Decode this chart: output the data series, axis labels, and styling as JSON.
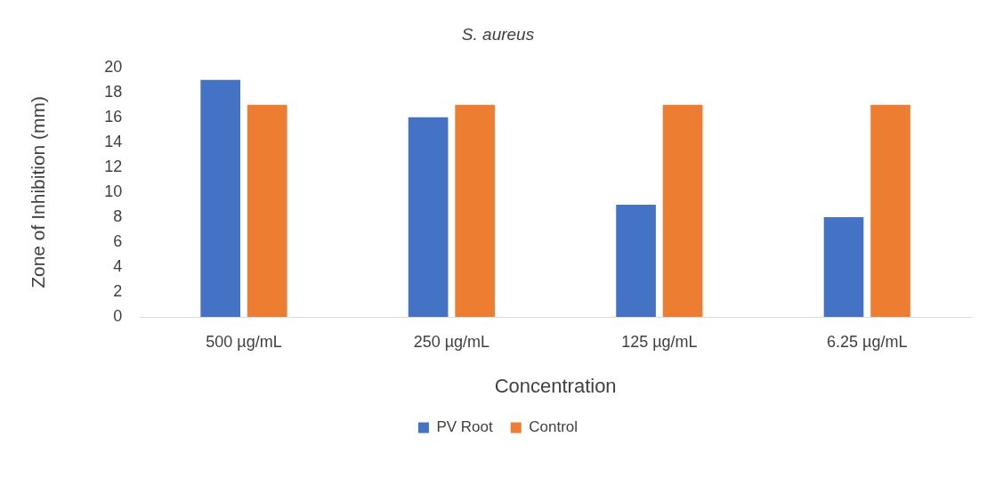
{
  "chart_data": {
    "type": "bar",
    "title": "S. aureus",
    "xlabel": "Concentration",
    "ylabel": "Zone of Inhibition (mm)",
    "categories": [
      "500 µg/mL",
      "250 µg/mL",
      "125 µg/mL",
      "6.25 µg/mL"
    ],
    "series": [
      {
        "name": "PV Root",
        "color": "#4472c4",
        "values": [
          19,
          16,
          9,
          8
        ]
      },
      {
        "name": "Control",
        "color": "#ed7d31",
        "values": [
          17,
          17,
          17,
          17
        ]
      }
    ],
    "ylim": [
      0,
      20
    ],
    "yticks": [
      0,
      2,
      4,
      6,
      8,
      10,
      12,
      14,
      16,
      18,
      20
    ],
    "grid": false,
    "legend": "bottom"
  }
}
